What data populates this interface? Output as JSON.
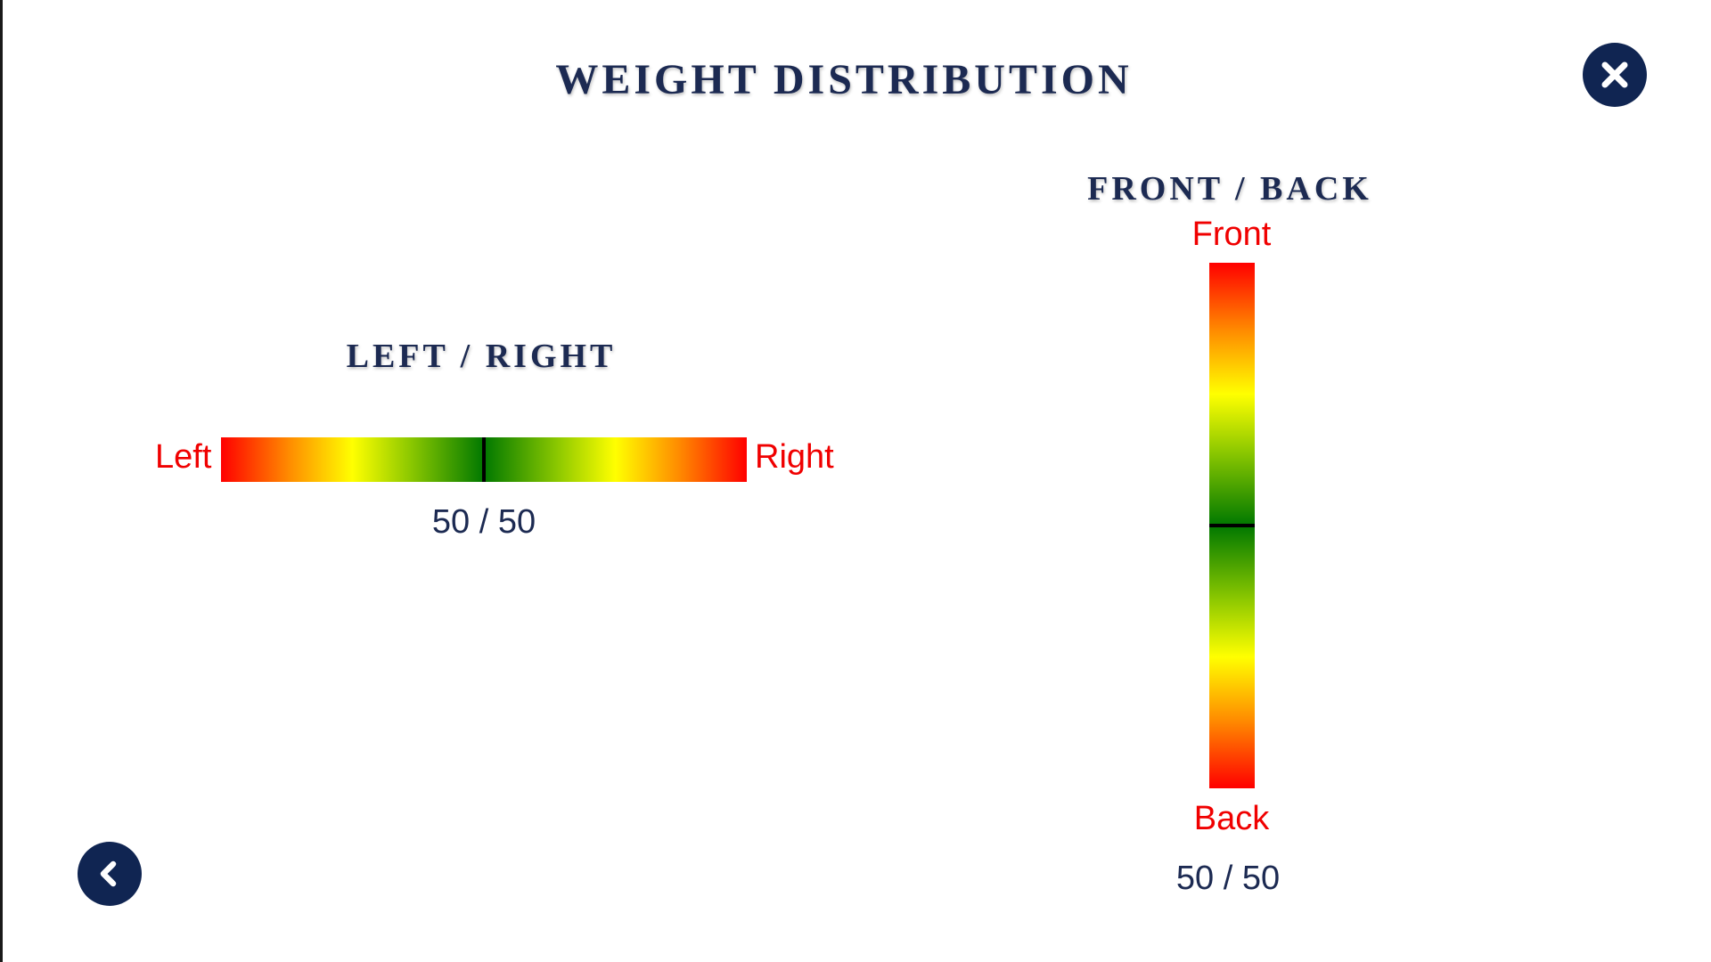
{
  "title": "WEIGHT DISTRIBUTION",
  "left_right": {
    "title": "LEFT / RIGHT",
    "left_label": "Left",
    "right_label": "Right",
    "ratio_text": "50 / 50",
    "balance": 0.5
  },
  "front_back": {
    "title": "FRONT / BACK",
    "front_label": "Front",
    "back_label": "Back",
    "ratio_text": "50 / 50",
    "balance": 0.5
  },
  "icons": {
    "close": "close-icon",
    "back": "chevron-left-icon"
  },
  "colors": {
    "navy": "#102552",
    "label_red": "#f00000",
    "gradient_end": "#ff0000",
    "gradient_mid": "#007800",
    "marker": "#000000"
  }
}
